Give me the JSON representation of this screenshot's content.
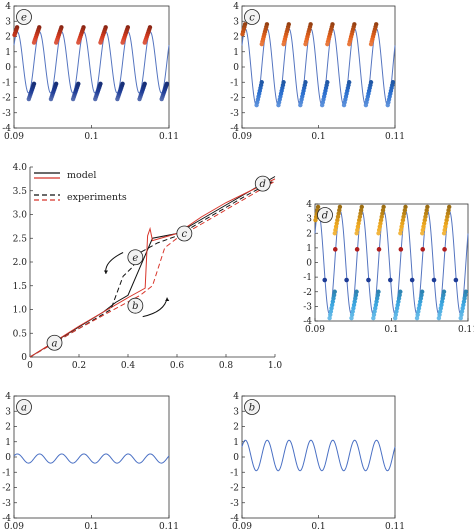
{
  "chart_data": [
    {
      "id": "e",
      "type": "line",
      "panel_label": "e",
      "x_range": [
        0.09,
        0.11
      ],
      "y_range": [
        -4,
        4
      ],
      "xticks": [
        "0.09",
        "0.1",
        "0.11"
      ],
      "yticks": [
        "-4",
        "-3",
        "-2",
        "-1",
        "0",
        "1",
        "2",
        "3",
        "4"
      ],
      "cycles": 7,
      "series": [
        {
          "kind": "waveform",
          "amplitude": 2.0,
          "offset": 0.3,
          "color": "#5575c0"
        },
        {
          "kind": "peak-scatter",
          "y_range": [
            1.6,
            2.6
          ],
          "color": "#d63a1e"
        },
        {
          "kind": "trough-scatter",
          "y_range": [
            -2.1,
            -1.1
          ],
          "color": "#1e3c96"
        }
      ]
    },
    {
      "id": "c",
      "type": "line",
      "panel_label": "c",
      "x_range": [
        0.09,
        0.11
      ],
      "y_range": [
        -4,
        4
      ],
      "xticks": [
        "0.09",
        "0.1",
        "0.11"
      ],
      "yticks": [
        "-4",
        "-3",
        "-2",
        "-1",
        "0",
        "1",
        "2",
        "3",
        "4"
      ],
      "cycles": 7,
      "series": [
        {
          "kind": "waveform",
          "amplitude": 2.5,
          "offset": 0.0,
          "color": "#5575c0"
        },
        {
          "kind": "peak-scatter",
          "y_range": [
            1.5,
            2.8
          ],
          "color": "#e6621c"
        },
        {
          "kind": "trough-scatter",
          "y_range": [
            -2.5,
            -1.0
          ],
          "color": "#2a6fd0"
        }
      ]
    },
    {
      "id": "main",
      "type": "line",
      "x_range": [
        0,
        1.0
      ],
      "y_range": [
        0,
        4.0
      ],
      "xticks": [
        "0",
        "0.2",
        "0.4",
        "0.6",
        "0.8",
        "1.0"
      ],
      "yticks": [
        "0",
        "0.5",
        "1.0",
        "1.5",
        "2.0",
        "2.5",
        "3.0",
        "3.5",
        "4.0"
      ],
      "legend": [
        {
          "label": "model",
          "colors": [
            "#111111",
            "#d8352a"
          ],
          "dash": false
        },
        {
          "label": "experiments",
          "colors": [
            "#111111",
            "#d8352a"
          ],
          "dash": true
        }
      ],
      "series": [
        {
          "name": "model",
          "color": "#111111",
          "dash": false,
          "x": [
            0,
            0.3,
            0.35,
            0.4,
            0.5,
            0.6,
            0.7,
            0.8,
            0.9,
            1.0
          ],
          "y": [
            0,
            0.95,
            1.15,
            1.3,
            2.5,
            2.6,
            2.9,
            3.2,
            3.5,
            3.8
          ]
        },
        {
          "name": "model",
          "color": "#d8352a",
          "dash": false,
          "x": [
            0,
            0.2,
            0.4,
            0.47,
            0.48,
            0.49,
            0.5,
            0.6,
            0.7,
            0.8,
            0.9,
            1.0
          ],
          "y": [
            0,
            0.65,
            1.25,
            1.45,
            2.55,
            2.7,
            2.45,
            2.6,
            2.95,
            3.25,
            3.5,
            3.75
          ]
        },
        {
          "name": "experiments",
          "color": "#111111",
          "dash": true,
          "x": [
            0,
            0.2,
            0.33,
            0.38,
            0.42,
            0.45,
            0.52,
            0.6,
            0.7,
            0.8,
            0.9,
            1.0
          ],
          "y": [
            0,
            0.6,
            1.0,
            1.7,
            1.9,
            2.2,
            2.4,
            2.55,
            2.85,
            3.15,
            3.45,
            3.72
          ]
        },
        {
          "name": "experiments",
          "color": "#d8352a",
          "dash": true,
          "x": [
            0,
            0.2,
            0.45,
            0.5,
            0.55,
            0.6,
            0.7,
            0.8,
            0.9,
            1.0
          ],
          "y": [
            0,
            0.6,
            1.3,
            1.5,
            2.3,
            2.5,
            2.8,
            3.1,
            3.4,
            3.7
          ]
        }
      ],
      "annotations": [
        {
          "label": "a",
          "x": 0.1,
          "y": 0.3
        },
        {
          "label": "b",
          "x": 0.43,
          "y": 1.08
        },
        {
          "label": "e",
          "x": 0.43,
          "y": 2.1
        },
        {
          "label": "c",
          "x": 0.63,
          "y": 2.6
        },
        {
          "label": "d",
          "x": 0.95,
          "y": 3.65
        }
      ]
    },
    {
      "id": "d",
      "type": "line",
      "panel_label": "d",
      "x_range": [
        0.09,
        0.11
      ],
      "y_range": [
        -4,
        4
      ],
      "xticks": [
        "0.09",
        "0.1",
        "0.11"
      ],
      "yticks": [
        "-4",
        "-3",
        "-2",
        "-1",
        "0",
        "1",
        "2",
        "3",
        "4"
      ],
      "cycles": 7,
      "series": [
        {
          "kind": "waveform",
          "amplitude": 3.5,
          "offset": 0.0,
          "color": "#5575c0"
        },
        {
          "kind": "peak-scatter",
          "y_range": [
            2.0,
            3.8
          ],
          "color": "#f0a91e"
        },
        {
          "kind": "trough-scatter",
          "y_range": [
            -3.8,
            -2.0
          ],
          "color": "#3aa6e0"
        },
        {
          "kind": "mid-upper-dots",
          "y": 0.9,
          "color": "#b01d1d"
        },
        {
          "kind": "mid-lower-dots",
          "y": -1.2,
          "color": "#1e3c96"
        }
      ]
    },
    {
      "id": "a",
      "type": "line",
      "panel_label": "a",
      "x_range": [
        0.09,
        0.11
      ],
      "y_range": [
        -4,
        4
      ],
      "xticks": [
        "0.09",
        "0.1",
        "0.11"
      ],
      "yticks": [
        "-4",
        "-3",
        "-2",
        "-1",
        "0",
        "1",
        "2",
        "3",
        "4"
      ],
      "cycles": 7,
      "series": [
        {
          "kind": "waveform",
          "amplitude": 0.3,
          "offset": -0.1,
          "color": "#4a70c4"
        }
      ]
    },
    {
      "id": "b",
      "type": "line",
      "panel_label": "b",
      "x_range": [
        0.09,
        0.11
      ],
      "y_range": [
        -4,
        4
      ],
      "xticks": [
        "0.09",
        "0.1",
        "0.11"
      ],
      "yticks": [
        "-4",
        "-3",
        "-2",
        "-1",
        "0",
        "1",
        "2",
        "3",
        "4"
      ],
      "cycles": 7,
      "series": [
        {
          "kind": "waveform",
          "amplitude": 1.0,
          "offset": 0.1,
          "color": "#4a70c4"
        }
      ]
    }
  ]
}
